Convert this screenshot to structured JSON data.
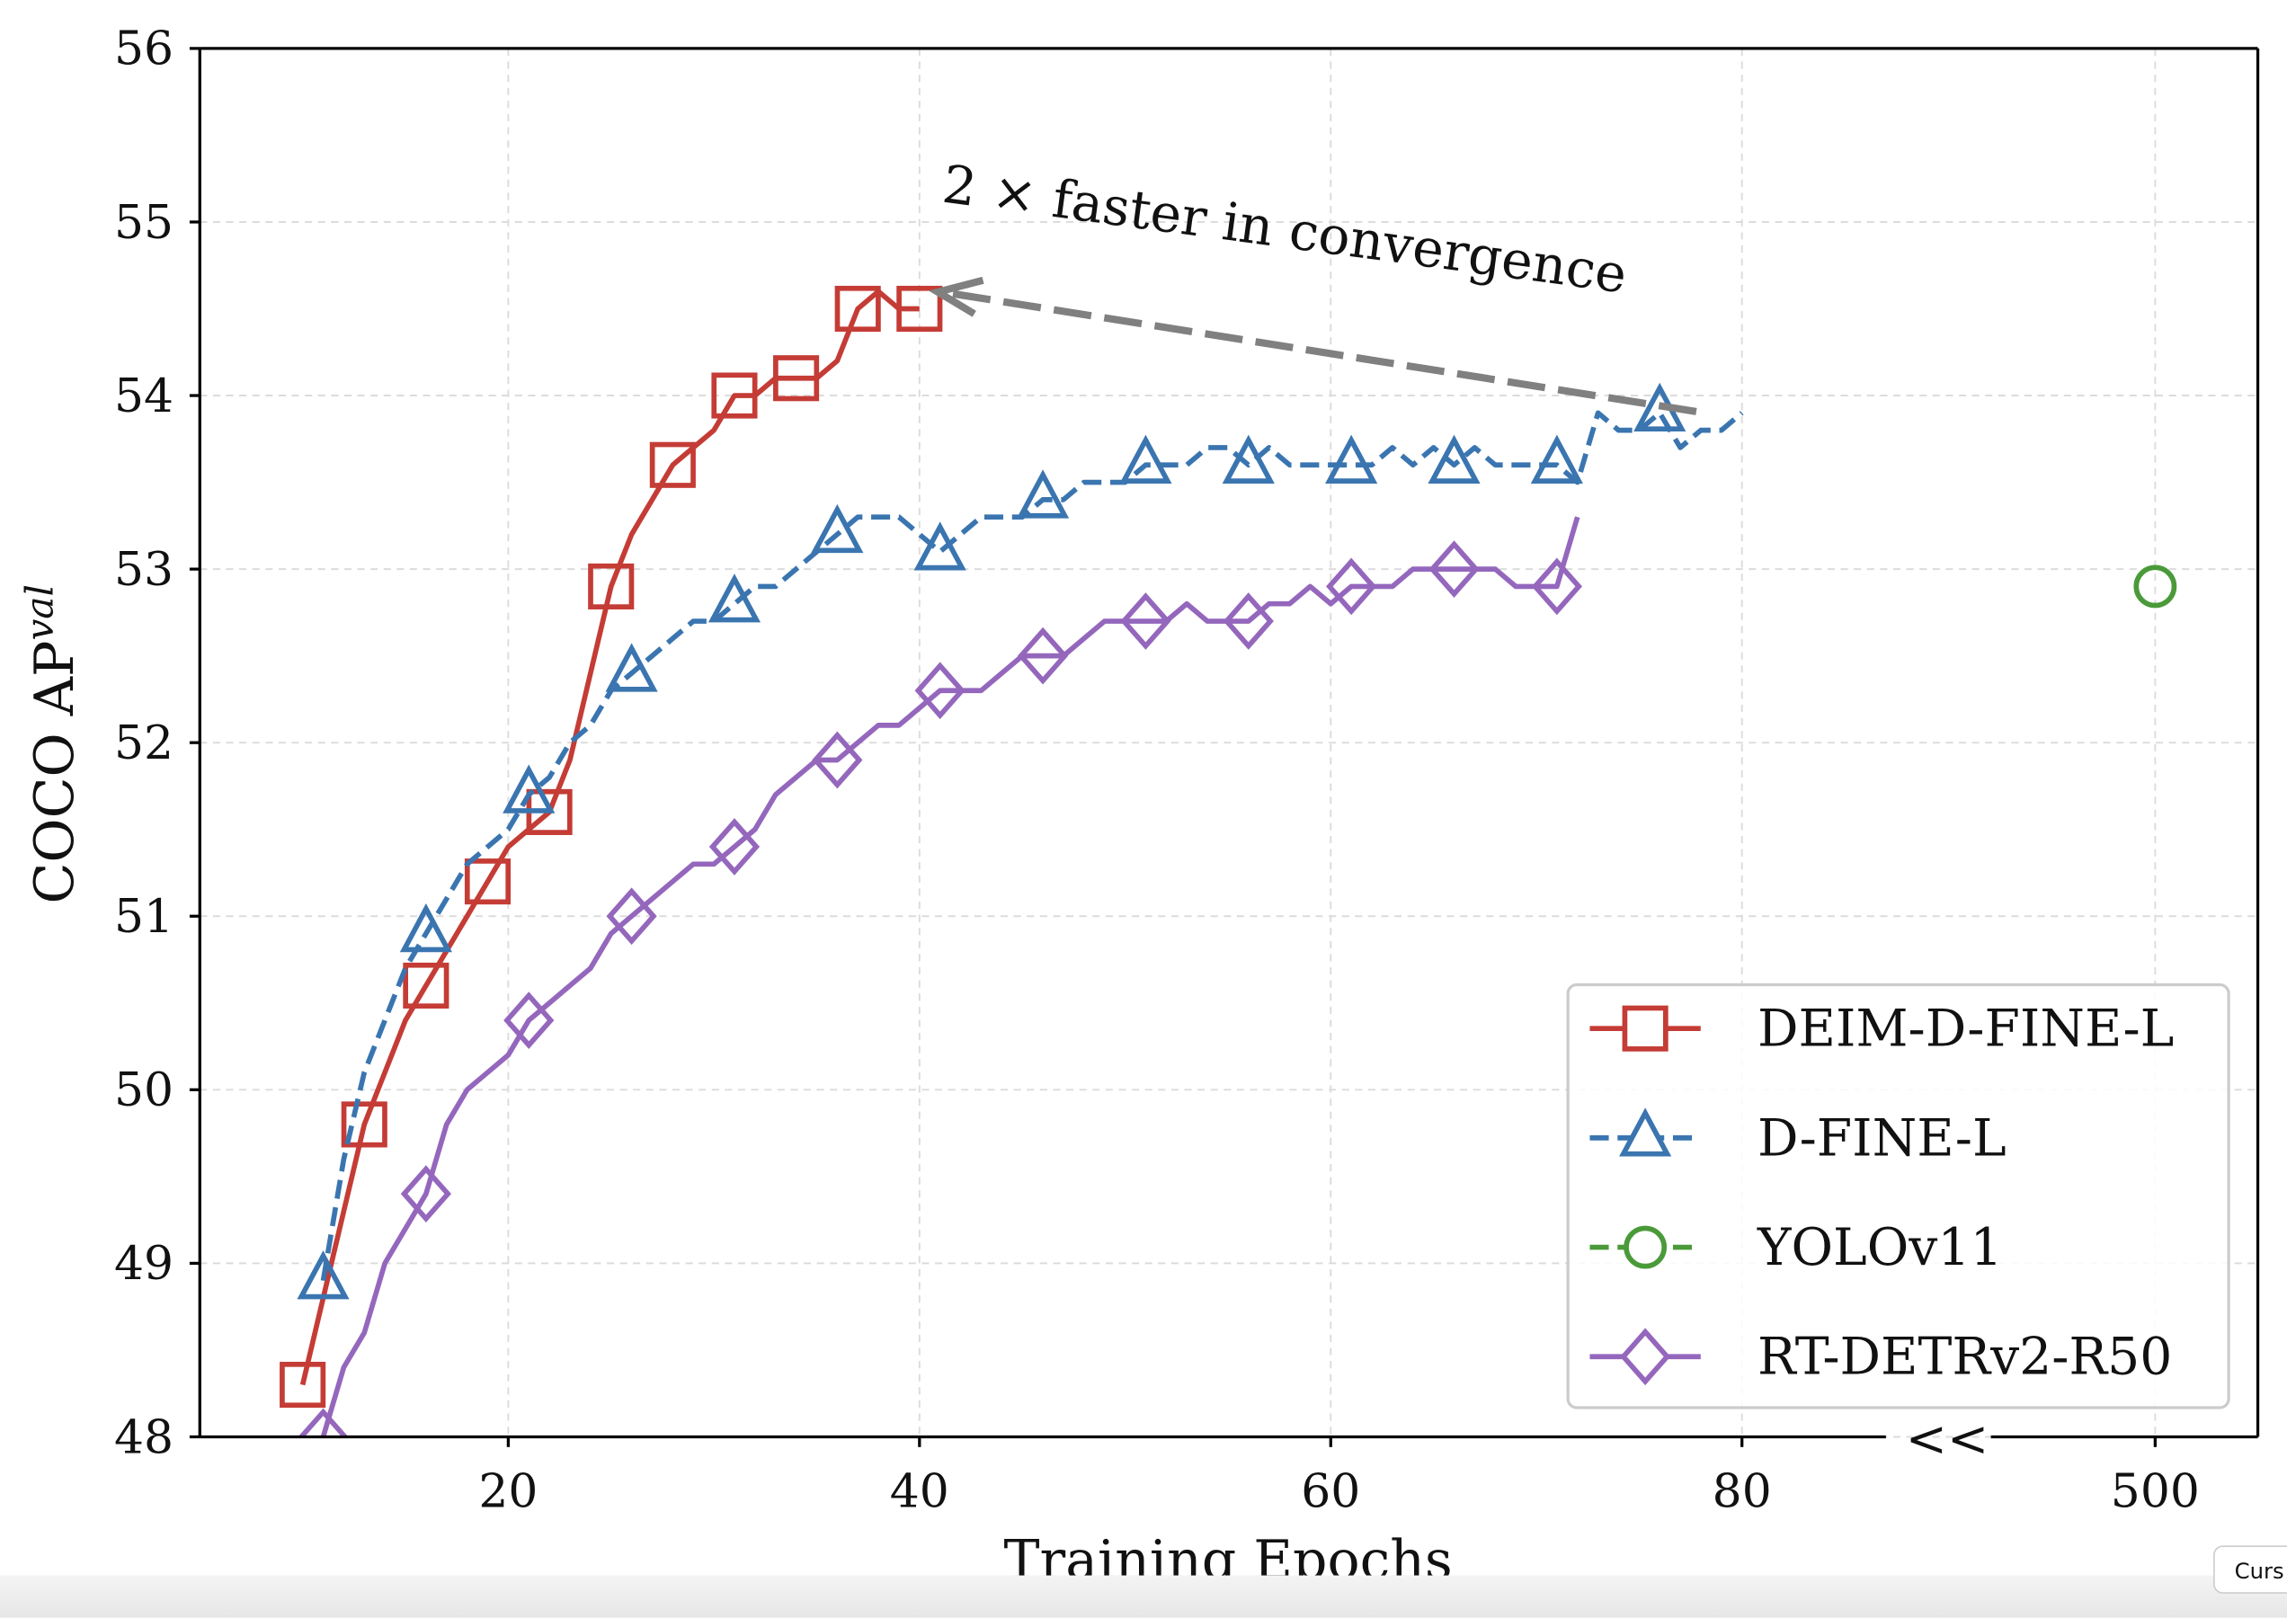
{
  "chart_data": {
    "type": "line",
    "xlabel": "Training Epochs",
    "ylabel": "COCO AP",
    "ylabel_sup": "val",
    "annotation": "2 ×  faster in convergence",
    "axis_break": "<<",
    "tooltip": "Curs",
    "xlim": [
      5,
      87
    ],
    "x2lim": [
      492,
      505
    ],
    "ylim": [
      48,
      56
    ],
    "xticks": [
      20,
      40,
      60,
      80
    ],
    "x2ticks": [
      500
    ],
    "yticks": [
      48,
      49,
      50,
      51,
      52,
      53,
      54,
      55,
      56
    ],
    "grid": true,
    "legend": "lower right",
    "series": [
      {
        "name": "DEIM-D-FINE-L",
        "color": "#c43c35",
        "marker": "square",
        "linestyle": "solid",
        "markevery": 3,
        "x": [
          10,
          11,
          12,
          13,
          14,
          15,
          16,
          17,
          18,
          19,
          20,
          21,
          22,
          23,
          24,
          25,
          26,
          27,
          28,
          29,
          30,
          31,
          32,
          33,
          34,
          35,
          36,
          37,
          38,
          39,
          40
        ],
        "values": [
          48.3,
          48.8,
          49.3,
          49.8,
          50.1,
          50.4,
          50.6,
          50.8,
          51.0,
          51.2,
          51.4,
          51.5,
          51.6,
          51.9,
          52.4,
          52.9,
          53.2,
          53.4,
          53.6,
          53.7,
          53.8,
          54.0,
          54.0,
          54.1,
          54.1,
          54.1,
          54.2,
          54.5,
          54.6,
          54.5,
          54.5
        ]
      },
      {
        "name": "D-FINE-L",
        "color": "#3a75b0",
        "marker": "triangle",
        "linestyle": "dashed",
        "markevery": 5,
        "x": [
          11,
          12,
          13,
          14,
          15,
          16,
          17,
          18,
          19,
          20,
          21,
          22,
          23,
          24,
          25,
          26,
          27,
          28,
          29,
          30,
          31,
          32,
          33,
          34,
          35,
          36,
          37,
          38,
          39,
          40,
          41,
          42,
          43,
          44,
          45,
          46,
          47,
          48,
          49,
          50,
          51,
          52,
          53,
          54,
          55,
          56,
          57,
          58,
          59,
          60,
          61,
          62,
          63,
          64,
          65,
          66,
          67,
          68,
          69,
          70,
          71,
          72,
          73,
          74,
          75,
          76,
          77,
          78,
          79,
          80
        ],
        "values": [
          48.9,
          49.6,
          50.1,
          50.4,
          50.7,
          50.9,
          51.1,
          51.3,
          51.4,
          51.5,
          51.7,
          51.8,
          52.0,
          52.1,
          52.3,
          52.4,
          52.5,
          52.6,
          52.7,
          52.7,
          52.8,
          52.9,
          52.9,
          53.0,
          53.1,
          53.2,
          53.3,
          53.3,
          53.3,
          53.2,
          53.1,
          53.2,
          53.3,
          53.3,
          53.3,
          53.4,
          53.4,
          53.5,
          53.5,
          53.5,
          53.6,
          53.6,
          53.6,
          53.7,
          53.7,
          53.6,
          53.7,
          53.6,
          53.6,
          53.6,
          53.6,
          53.6,
          53.7,
          53.6,
          53.7,
          53.6,
          53.7,
          53.6,
          53.6,
          53.6,
          53.6,
          53.5,
          53.9,
          53.8,
          53.8,
          53.9,
          53.7,
          53.8,
          53.8,
          53.9
        ]
      },
      {
        "name": "YOLOv11",
        "color": "#4a9a3a",
        "marker": "circle",
        "linestyle": "dashed",
        "markevery": 1,
        "axis": "x2",
        "x": [
          500
        ],
        "values": [
          52.9
        ]
      },
      {
        "name": "RT-DETRv2-R50",
        "color": "#9467bd",
        "marker": "diamond",
        "linestyle": "solid",
        "markevery": 5,
        "x": [
          11,
          12,
          13,
          14,
          15,
          16,
          17,
          18,
          19,
          20,
          21,
          22,
          23,
          24,
          25,
          26,
          27,
          28,
          29,
          30,
          31,
          32,
          33,
          34,
          35,
          36,
          37,
          38,
          39,
          40,
          41,
          42,
          43,
          44,
          45,
          46,
          47,
          48,
          49,
          50,
          51,
          52,
          53,
          54,
          55,
          56,
          57,
          58,
          59,
          60,
          61,
          62,
          63,
          64,
          65,
          66,
          67,
          68,
          69,
          70,
          71,
          72
        ],
        "values": [
          48.0,
          48.4,
          48.6,
          49.0,
          49.2,
          49.4,
          49.8,
          50.0,
          50.1,
          50.2,
          50.4,
          50.5,
          50.6,
          50.7,
          50.9,
          51.0,
          51.1,
          51.2,
          51.3,
          51.3,
          51.4,
          51.5,
          51.7,
          51.8,
          51.9,
          51.9,
          52.0,
          52.1,
          52.1,
          52.2,
          52.3,
          52.3,
          52.3,
          52.4,
          52.5,
          52.5,
          52.5,
          52.6,
          52.7,
          52.7,
          52.7,
          52.7,
          52.8,
          52.7,
          52.7,
          52.7,
          52.8,
          52.8,
          52.9,
          52.8,
          52.9,
          52.9,
          52.9,
          53.0,
          53.0,
          53.0,
          53.0,
          53.0,
          52.9,
          52.9,
          52.9,
          53.3
        ]
      }
    ]
  }
}
